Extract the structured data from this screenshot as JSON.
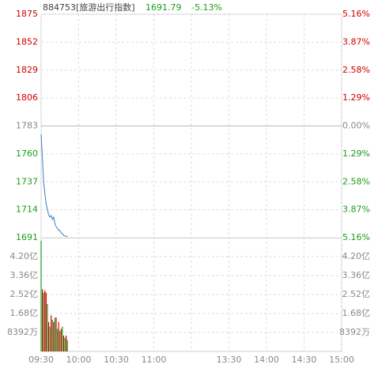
{
  "chart_data": [
    {
      "type": "line",
      "title": "884753[旅游出行指数]",
      "last_price": 1691.79,
      "change_label": "-5.13%",
      "header_color": "#1a9c1a",
      "x": [
        "09:30",
        "09:31",
        "09:32",
        "09:33",
        "09:34",
        "09:35",
        "09:36",
        "09:37",
        "09:38",
        "09:39",
        "09:40",
        "09:41",
        "09:42",
        "09:43",
        "09:44",
        "09:45",
        "09:46",
        "09:47",
        "09:48",
        "09:49",
        "09:50",
        "09:51"
      ],
      "values": [
        1776.2,
        1756.7,
        1737.2,
        1727.4,
        1719,
        1714.4,
        1709.9,
        1708,
        1709.2,
        1706,
        1708,
        1702.7,
        1700.1,
        1698.8,
        1696.9,
        1696.9,
        1694.9,
        1694.3,
        1692.9,
        1692.3,
        1692.3,
        1691.79
      ],
      "color": "#3a7fc4",
      "up_color": "#d00000",
      "down_color": "#1a9c1a",
      "flat_color": "#888888",
      "xlim": [
        "09:30",
        "15:00"
      ],
      "ylim": [
        1691,
        1875
      ],
      "yticks": [
        1691,
        1714,
        1737,
        1760,
        1783,
        1806,
        1829,
        1852,
        1875
      ],
      "y2lim": [
        -5.16,
        5.16
      ],
      "y2ticks": [
        {
          "value": -5.16,
          "label": "5.16%"
        },
        {
          "value": -3.87,
          "label": "3.87%"
        },
        {
          "value": -2.58,
          "label": "2.58%"
        },
        {
          "value": -1.29,
          "label": "1.29%"
        },
        {
          "value": 0,
          "label": "0.00%"
        },
        {
          "value": 1.29,
          "label": "1.29%"
        },
        {
          "value": 2.58,
          "label": "2.58%"
        },
        {
          "value": 3.87,
          "label": "3.87%"
        },
        {
          "value": 5.16,
          "label": "5.16%"
        }
      ],
      "grid": true
    },
    {
      "type": "bar",
      "x": [
        "09:30",
        "09:31",
        "09:32",
        "09:33",
        "09:34",
        "09:35",
        "09:36",
        "09:37",
        "09:38",
        "09:39",
        "09:40",
        "09:41",
        "09:42",
        "09:43",
        "09:44",
        "09:45",
        "09:46",
        "09:47",
        "09:48",
        "09:49",
        "09:50",
        "09:51"
      ],
      "values": [
        4.9,
        2.75,
        2.6,
        2.7,
        2.6,
        2.1,
        1.3,
        1.1,
        1.6,
        1.4,
        1.3,
        1.5,
        1.5,
        1.0,
        1.3,
        0.9,
        1.0,
        1.1,
        0.7,
        0.6,
        0.7,
        0.5
      ],
      "colors": [
        "#1a9c1a",
        "#d00000",
        "#1a9c1a",
        "#d00000",
        "#d00000",
        "#1a9c1a",
        "#d00000",
        "#1a9c1a",
        "#d00000",
        "#1a9c1a",
        "#d00000",
        "#1a9c1a",
        "#d00000",
        "#1a9c1a",
        "#d00000",
        "#1a9c1a",
        "#d00000",
        "#1a9c1a",
        "#d00000",
        "#1a9c1a",
        "#d00000",
        "#1a9c1a"
      ],
      "xlim": [
        "09:30",
        "15:00"
      ],
      "xticks": [
        "09:30",
        "10:00",
        "10:30",
        "11:00",
        "13:30",
        "14:00",
        "14:30",
        "15:00"
      ],
      "ylim": [
        0,
        5.0
      ],
      "yticks": [
        {
          "value": 0.8392,
          "label": "8392万"
        },
        {
          "value": 1.68,
          "label": "1.68亿"
        },
        {
          "value": 2.52,
          "label": "2.52亿"
        },
        {
          "value": 3.36,
          "label": "3.36亿"
        },
        {
          "value": 4.2,
          "label": "4.20亿"
        }
      ],
      "tick_color": "#888888",
      "grid": true
    }
  ]
}
